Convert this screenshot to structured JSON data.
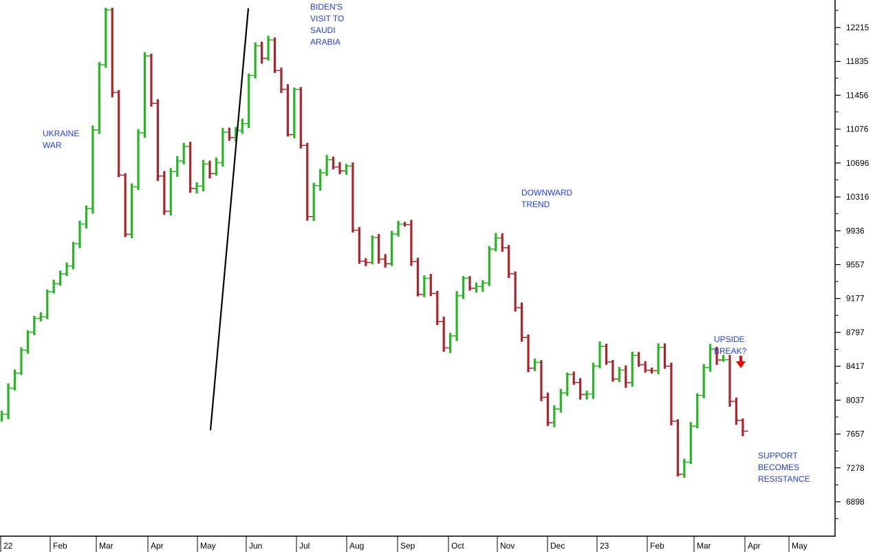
{
  "chart_data": {
    "type": "bar",
    "style": "OHLC step bars; green bar = up period, red bar = down period",
    "x_tick_labels": [
      "22",
      "Feb",
      "Mar",
      "Apr",
      "May",
      "Jun",
      "Jul",
      "Aug",
      "Sep",
      "Oct",
      "Nov",
      "Dec",
      "23",
      "Feb",
      "Mar",
      "Apr",
      "May"
    ],
    "y_ticks": [
      6898,
      7278,
      7657,
      8037,
      8417,
      8797,
      9177,
      9557,
      9936,
      10316,
      10696,
      11076,
      11456,
      11835,
      12215
    ],
    "y_tick_labels": [
      "6898",
      "7278",
      "7657",
      "8037",
      "8417",
      "8797",
      "9177",
      "9557",
      "9936",
      "10316",
      "10696",
      "11076",
      "11456",
      "11835",
      "12215"
    ],
    "ylim": [
      6500,
      12500
    ],
    "y_axis_side": "right",
    "grid": false,
    "up_color": "#22b81f",
    "down_color": "#b0222a",
    "trendline": {
      "color": "#000000",
      "from": {
        "x": "Jun",
        "y": 12430
      },
      "to": {
        "x": "May",
        "y": 7700
      }
    },
    "annotations": [
      {
        "id": "ukraine",
        "lines": [
          "UKRAINE",
          "WAR"
        ]
      },
      {
        "id": "biden",
        "lines": [
          "BIDEN'S",
          "VISIT TO",
          "SAUDI",
          "ARABIA"
        ]
      },
      {
        "id": "downward",
        "lines": [
          "DOWNWARD",
          "TREND"
        ]
      },
      {
        "id": "upside",
        "lines": [
          "UPSIDE",
          "BREAK?"
        ]
      },
      {
        "id": "support",
        "lines": [
          "SUPPORT",
          "BECOMES",
          "RESISTANCE"
        ]
      }
    ],
    "annotation_color": "#1f3dff",
    "arrow_color": "#ff0000",
    "approx_close_path": [
      [
        0.0,
        7880
      ],
      [
        1.8,
        8380
      ],
      [
        3.2,
        8700
      ],
      [
        5.2,
        8980
      ],
      [
        7.1,
        9180
      ],
      [
        8.8,
        9450
      ],
      [
        10.8,
        9680
      ],
      [
        12.9,
        10200
      ],
      [
        15.5,
        12250
      ],
      [
        16.5,
        12500
      ],
      [
        17.3,
        11000
      ],
      [
        19.0,
        9900
      ],
      [
        20.5,
        10800
      ],
      [
        22.0,
        11800
      ],
      [
        23.3,
        11100
      ],
      [
        24.8,
        10100
      ],
      [
        26.3,
        10600
      ],
      [
        27.8,
        11000
      ],
      [
        29.4,
        10200
      ],
      [
        31.2,
        10800
      ],
      [
        32.8,
        10500
      ],
      [
        34.1,
        11100
      ],
      [
        35.6,
        11000
      ],
      [
        37.2,
        11200
      ],
      [
        38.5,
        12100
      ],
      [
        39.5,
        11800
      ],
      [
        41.2,
        12150
      ],
      [
        42.8,
        11500
      ],
      [
        44.2,
        11000
      ],
      [
        45.3,
        11600
      ],
      [
        46.8,
        10100
      ],
      [
        48.3,
        10500
      ],
      [
        49.6,
        10700
      ],
      [
        51.3,
        10600
      ],
      [
        52.9,
        10800
      ],
      [
        54.2,
        9800
      ],
      [
        55.6,
        9600
      ],
      [
        57.1,
        9900
      ],
      [
        58.5,
        9400
      ],
      [
        60.0,
        9800
      ],
      [
        61.6,
        10200
      ],
      [
        62.7,
        9700
      ],
      [
        64.1,
        9200
      ],
      [
        65.5,
        9400
      ],
      [
        67.1,
        8900
      ],
      [
        68.3,
        8600
      ],
      [
        69.6,
        9000
      ],
      [
        70.9,
        9500
      ],
      [
        72.3,
        9300
      ],
      [
        73.8,
        9200
      ],
      [
        75.2,
        9700
      ],
      [
        76.5,
        9800
      ],
      [
        78.0,
        9400
      ],
      [
        79.4,
        8900
      ],
      [
        80.8,
        8500
      ],
      [
        82.2,
        8500
      ],
      [
        83.6,
        7800
      ],
      [
        84.9,
        7950
      ],
      [
        86.2,
        8100
      ],
      [
        87.6,
        8400
      ],
      [
        89.0,
        8000
      ],
      [
        90.4,
        8300
      ],
      [
        91.8,
        8650
      ],
      [
        93.2,
        8450
      ],
      [
        94.6,
        8300
      ],
      [
        95.8,
        8200
      ],
      [
        97.2,
        8500
      ],
      [
        98.6,
        8350
      ],
      [
        100.0,
        8450
      ],
      [
        101.3,
        8600
      ],
      [
        102.6,
        8100
      ],
      [
        103.9,
        7300
      ],
      [
        105.3,
        7450
      ],
      [
        106.7,
        7950
      ],
      [
        108.1,
        8400
      ],
      [
        109.5,
        8600
      ],
      [
        110.9,
        8450
      ],
      [
        112.3,
        8000
      ],
      [
        113.5,
        7850
      ],
      [
        114.6,
        7700
      ]
    ]
  }
}
